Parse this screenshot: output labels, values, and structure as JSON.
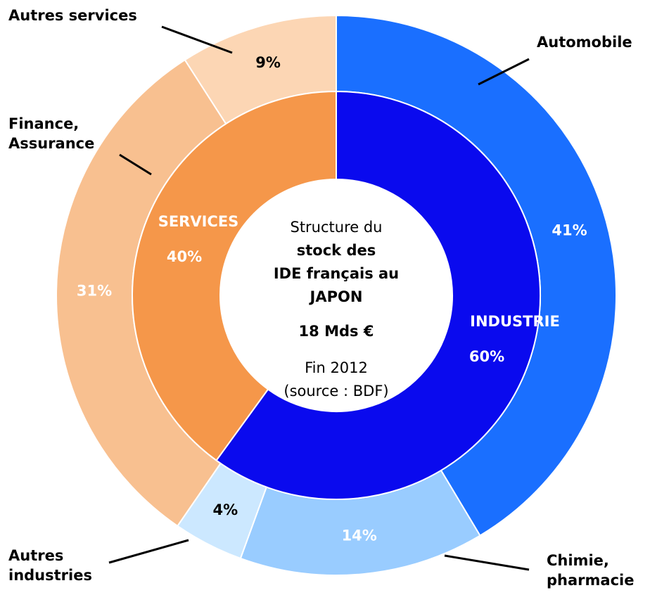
{
  "chart_data": {
    "type": "sunburst",
    "center_text": [
      "Structure du",
      "stock des",
      "IDE français au",
      "JAPON",
      "18 Mds €",
      "Fin 2012",
      "(source : BDF)"
    ],
    "inner": {
      "categories": [
        "INDUSTRIE",
        "SERVICES"
      ],
      "values": [
        60,
        40
      ],
      "value_labels": [
        "60%",
        "40%"
      ],
      "colors": [
        "#0a0aee",
        "#f5974a"
      ]
    },
    "outer": {
      "categories": [
        "Automobile",
        "Chimie,\npharmacie",
        "Autres\nindustries",
        "Finance,\nAssurance",
        "Autres services"
      ],
      "values": [
        41,
        14,
        4,
        31,
        9
      ],
      "value_labels": [
        "41%",
        "14%",
        "4%",
        "31%",
        "9%"
      ],
      "colors": [
        "#1a6fff",
        "#99ccff",
        "#cce8ff",
        "#f8c090",
        "#fcd6b4"
      ]
    }
  }
}
